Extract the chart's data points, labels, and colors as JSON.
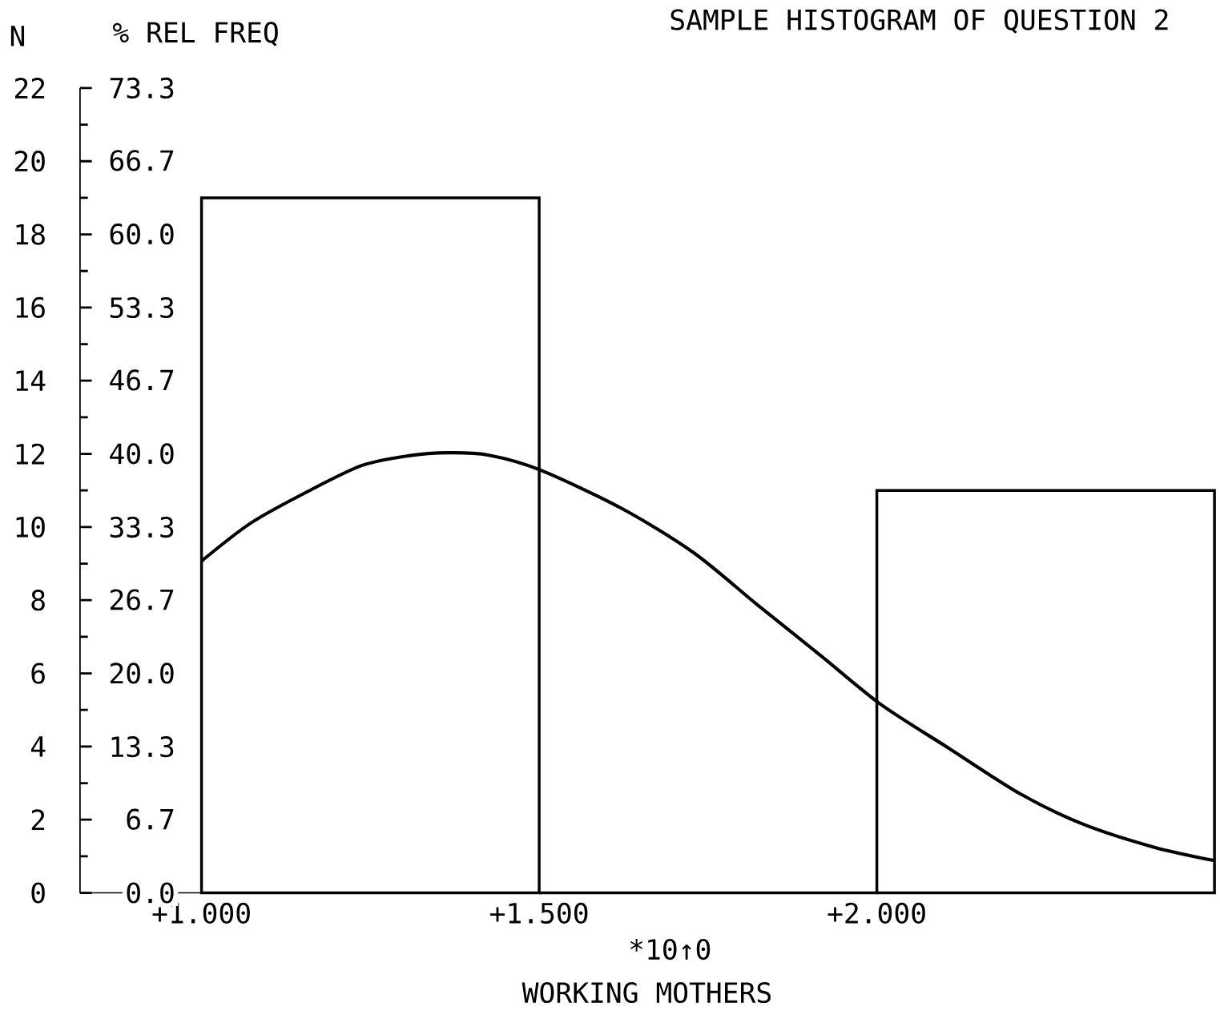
{
  "chart_data": {
    "type": "histogram",
    "title": "SAMPLE HISTOGRAM OF QUESTION 2",
    "xlabel": "WORKING MOTHERS",
    "ylabel": "N",
    "y2label": "% REL FREQ",
    "annotations": [
      "*10↑0"
    ],
    "xlim": [
      0.82,
      2.5
    ],
    "xticks": [
      {
        "value": 1.0,
        "label": "+1.000"
      },
      {
        "value": 1.5,
        "label": "+1.500"
      },
      {
        "value": 2.0,
        "label": "+2.000"
      }
    ],
    "ylim": [
      0,
      22
    ],
    "yticks": [
      0,
      2,
      4,
      6,
      8,
      10,
      12,
      14,
      16,
      18,
      20,
      22
    ],
    "y2lim": [
      0,
      73.3
    ],
    "y2ticks": [
      {
        "value": 0,
        "label": "0.0"
      },
      6.7,
      13.3,
      {
        "value": 20,
        "label": "20.0"
      },
      26.7,
      33.3,
      {
        "value": 40,
        "label": "40.0"
      },
      46.7,
      53.3,
      {
        "value": 60,
        "label": "60.0"
      },
      66.7,
      73.3
    ],
    "grid": false,
    "series": [
      {
        "color": "#000000",
        "bins": [
          1.0,
          1.5,
          2.0,
          2.5
        ],
        "values": [
          19,
          0,
          11
        ]
      },
      {
        "type": "line",
        "color": "#000000",
        "x": [
          1.0,
          1.073,
          1.155,
          1.237,
          1.307,
          1.366,
          1.424,
          1.5,
          1.624,
          1.73,
          1.824,
          1.918,
          2.006,
          2.106,
          2.212,
          2.305,
          2.41,
          2.5
        ],
        "values": [
          9.07,
          10.11,
          10.95,
          11.68,
          11.95,
          12.03,
          11.97,
          11.57,
          10.49,
          9.28,
          7.86,
          6.47,
          5.15,
          3.96,
          2.71,
          1.88,
          1.25,
          0.88
        ]
      }
    ]
  }
}
